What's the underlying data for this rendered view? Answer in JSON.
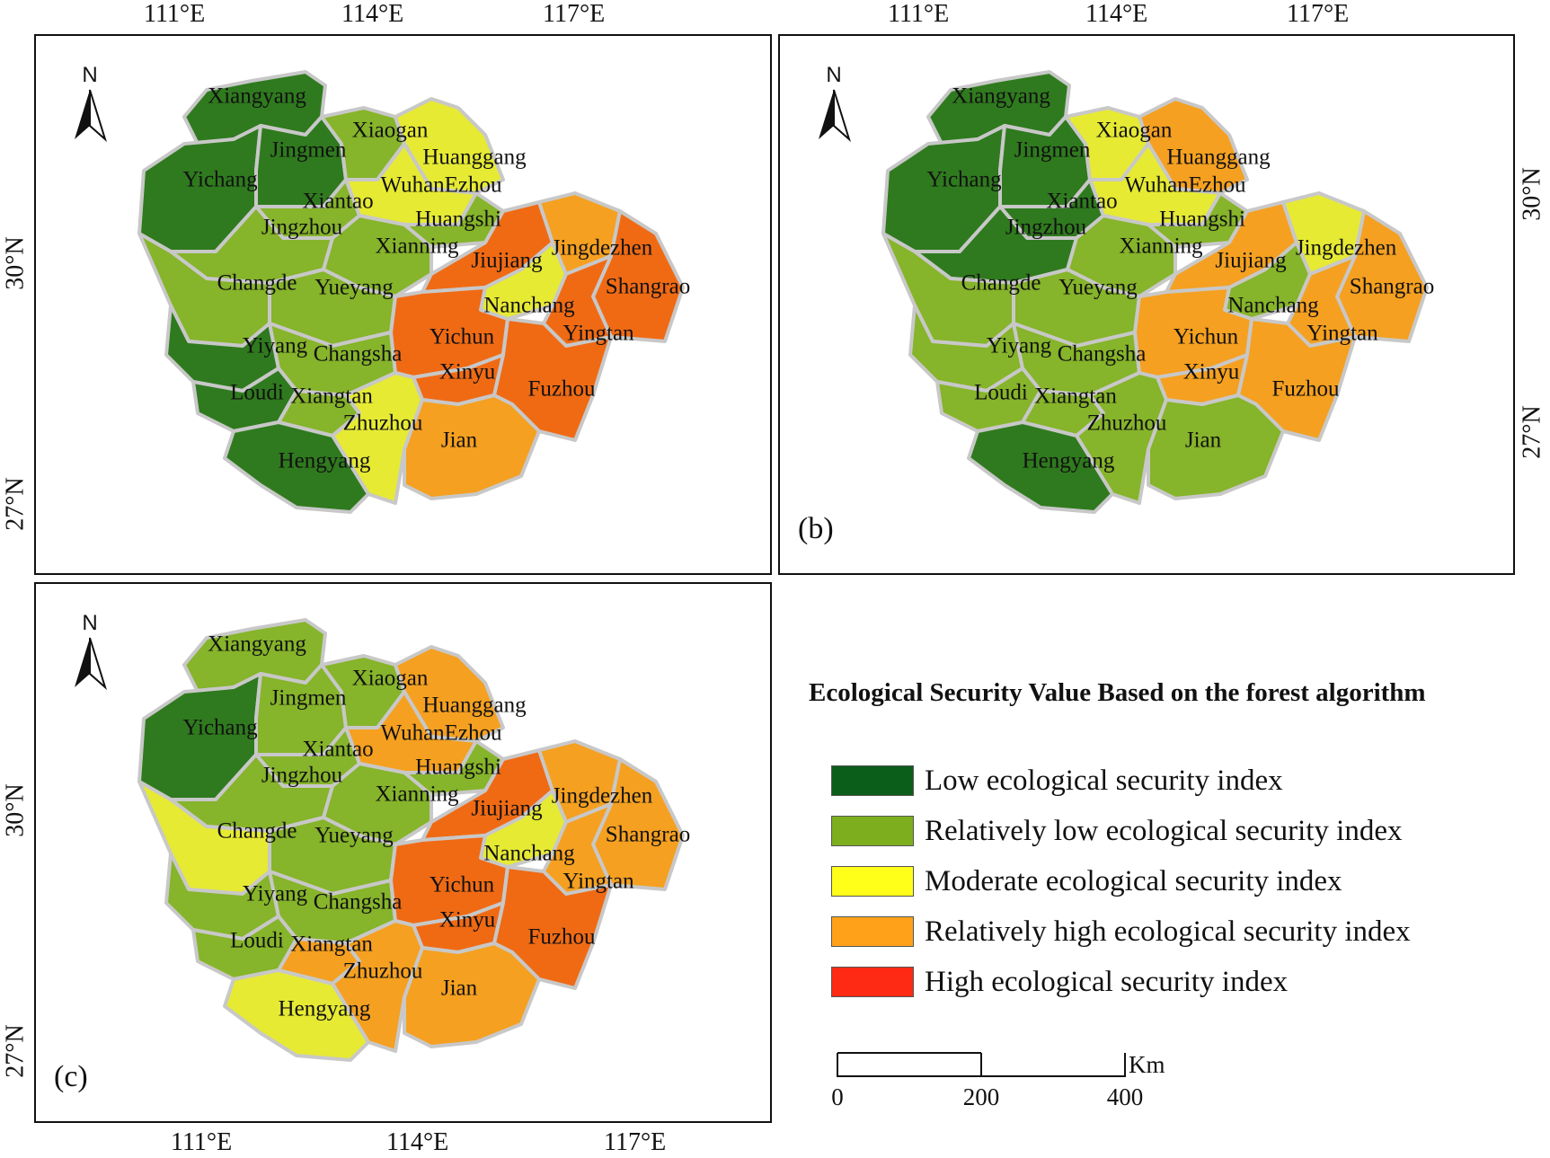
{
  "panels": {
    "a": {
      "label": ""
    },
    "b": {
      "label": "(b)"
    },
    "c": {
      "label": "(c)"
    }
  },
  "lon_ticks": {
    "top_a": [
      "111°E",
      "114°E",
      "117°E"
    ],
    "top_b": [
      "111°E",
      "114°E",
      "117°E"
    ],
    "bottom_c": [
      "111°E",
      "114°E",
      "117°E"
    ]
  },
  "lat_ticks": {
    "left_a": [
      "30°N",
      "27°N"
    ],
    "right_b": [
      "30°N",
      "27°N"
    ],
    "left_c": [
      "30°N",
      "27°N"
    ]
  },
  "north_symbol": "N",
  "cities": [
    "Xiangyang",
    "Xiaogan",
    "Jingmen",
    "Huanggang",
    "Yichang",
    "WuhanEzhou",
    "Xiantao",
    "Huangshi",
    "Jingzhou",
    "Xianning",
    "Jiujiang",
    "Jingdezhen",
    "Changde",
    "Yueyang",
    "Shangrao",
    "Nanchang",
    "Yichun",
    "Yingtan",
    "Yiyang",
    "Changsha",
    "Xinyu",
    "Fuzhou",
    "Loudi",
    "Xiangtan",
    "Zhuzhou",
    "Jian",
    "Hengyang"
  ],
  "legend": {
    "title": "Ecological Security Value Based on the forest algorithm",
    "items": [
      {
        "label": "Low ecological security index",
        "color": "#0b5e1a"
      },
      {
        "label": "Relatively low ecological security index",
        "color": "#7cae1e"
      },
      {
        "label": "Moderate ecological security index",
        "color": "#ffff1a"
      },
      {
        "label": "Relatively high ecological security index",
        "color": "#ffa21a"
      },
      {
        "label": "High ecological security index",
        "color": "#ff2a14"
      }
    ]
  },
  "scale_bar": {
    "labels": [
      "0",
      "200",
      "400"
    ],
    "unit": "Km"
  },
  "class_colors": {
    "low": "#2f7a1e",
    "rlow": "#86b42a",
    "mod": "#e6ea33",
    "rhigh": "#f5a020",
    "high": "#f06a14"
  },
  "maps": {
    "a": {
      "Xiangyang": "low",
      "Yichang": "low",
      "Jingmen": "low",
      "Xiaogan": "rlow",
      "Huanggang": "mod",
      "WuhanEzhou": "mod",
      "Xiantao": "rlow",
      "Jingzhou": "rlow",
      "Huangshi": "rlow",
      "Xianning": "rlow",
      "Changde": "rlow",
      "Yueyang": "rlow",
      "Yiyang": "low",
      "Changsha": "rlow",
      "Loudi": "low",
      "Xiangtan": "rlow",
      "Zhuzhou": "mod",
      "Hengyang": "low",
      "Jiujiang": "high",
      "Jingdezhen": "rhigh",
      "Shangrao": "high",
      "Nanchang": "mod",
      "Yingtan": "high",
      "Yichun": "high",
      "Xinyu": "high",
      "Fuzhou": "high",
      "Jian": "rhigh"
    },
    "b": {
      "Xiangyang": "low",
      "Yichang": "low",
      "Jingmen": "low",
      "Xiaogan": "mod",
      "Huanggang": "rhigh",
      "WuhanEzhou": "mod",
      "Xiantao": "low",
      "Jingzhou": "low",
      "Huangshi": "rlow",
      "Xianning": "rlow",
      "Changde": "rlow",
      "Yueyang": "rlow",
      "Yiyang": "rlow",
      "Changsha": "rlow",
      "Loudi": "rlow",
      "Xiangtan": "rlow",
      "Zhuzhou": "rlow",
      "Hengyang": "low",
      "Jiujiang": "rhigh",
      "Jingdezhen": "mod",
      "Shangrao": "rhigh",
      "Nanchang": "rlow",
      "Yingtan": "rhigh",
      "Yichun": "rhigh",
      "Xinyu": "rhigh",
      "Fuzhou": "rhigh",
      "Jian": "rlow"
    },
    "c": {
      "Xiangyang": "rlow",
      "Yichang": "low",
      "Jingmen": "rlow",
      "Xiaogan": "rlow",
      "Huanggang": "rhigh",
      "WuhanEzhou": "rhigh",
      "Xiantao": "rlow",
      "Jingzhou": "rlow",
      "Huangshi": "rlow",
      "Xianning": "rlow",
      "Changde": "mod",
      "Yueyang": "rlow",
      "Yiyang": "rlow",
      "Changsha": "rlow",
      "Loudi": "rlow",
      "Xiangtan": "rhigh",
      "Zhuzhou": "rhigh",
      "Hengyang": "mod",
      "Jiujiang": "high",
      "Jingdezhen": "rhigh",
      "Shangrao": "rhigh",
      "Nanchang": "mod",
      "Yingtan": "rhigh",
      "Yichun": "high",
      "Xinyu": "high",
      "Fuzhou": "high",
      "Jian": "rhigh"
    }
  }
}
